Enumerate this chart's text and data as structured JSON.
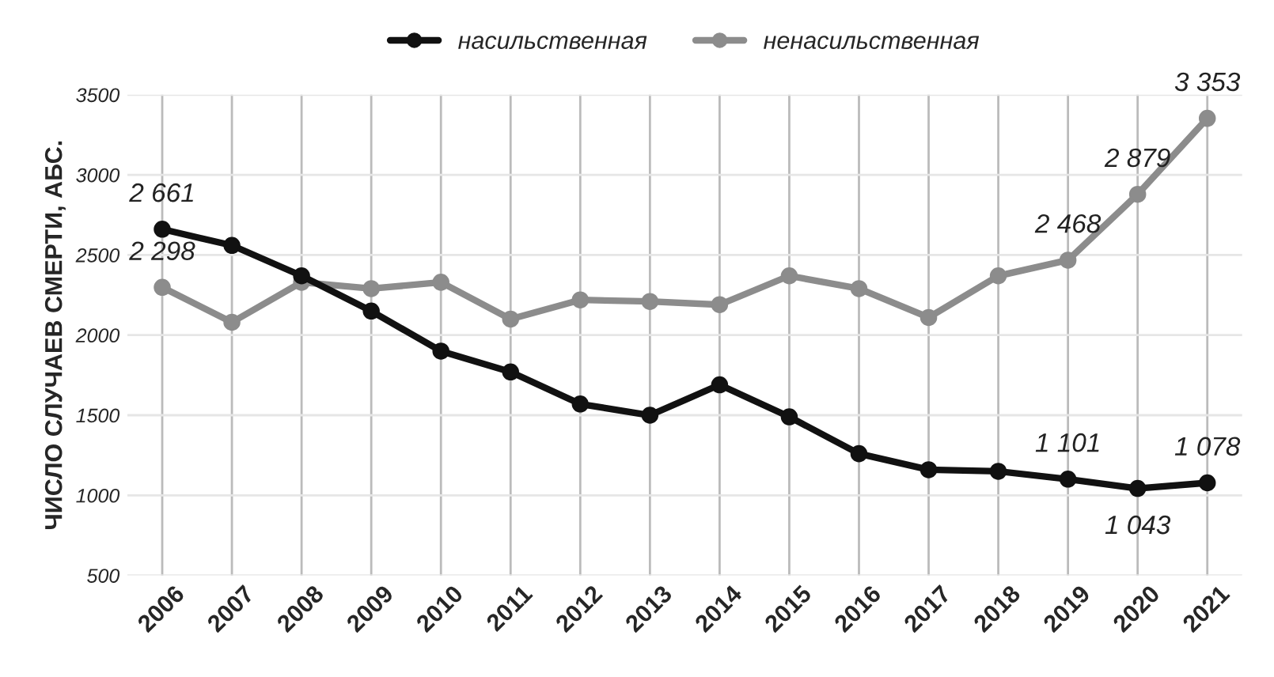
{
  "chart_data": {
    "type": "line",
    "ylabel": "ЧИСЛО СЛУЧАЕВ СМЕРТИ, АБС.",
    "categories": [
      "2006",
      "2007",
      "2008",
      "2009",
      "2010",
      "2011",
      "2012",
      "2013",
      "2014",
      "2015",
      "2016",
      "2017",
      "2018",
      "2019",
      "2020",
      "2021"
    ],
    "series": [
      {
        "name": "насильственная",
        "color": "#111111",
        "values": [
          2661,
          2560,
          2370,
          2150,
          1900,
          1770,
          1570,
          1500,
          1690,
          1490,
          1260,
          1160,
          1150,
          1101,
          1043,
          1078
        ],
        "value_labels": [
          "2 661",
          null,
          null,
          null,
          null,
          null,
          null,
          null,
          null,
          null,
          null,
          null,
          null,
          "1 101",
          "1 043",
          "1 078"
        ]
      },
      {
        "name": "ненасильственная",
        "color": "#8c8c8c",
        "values": [
          2298,
          2080,
          2330,
          2290,
          2330,
          2100,
          2220,
          2210,
          2190,
          2370,
          2290,
          2110,
          2370,
          2468,
          2879,
          3353
        ],
        "value_labels": [
          "2 298",
          null,
          null,
          null,
          null,
          null,
          null,
          null,
          null,
          null,
          null,
          null,
          null,
          "2 468",
          "2 879",
          "3 353"
        ]
      }
    ],
    "ylim": [
      500,
      3500
    ],
    "yticks": [
      500,
      1000,
      1500,
      2000,
      2500,
      3000,
      3500
    ],
    "grid": true,
    "legend": "top",
    "marker": "circle",
    "line_style": "solid"
  }
}
